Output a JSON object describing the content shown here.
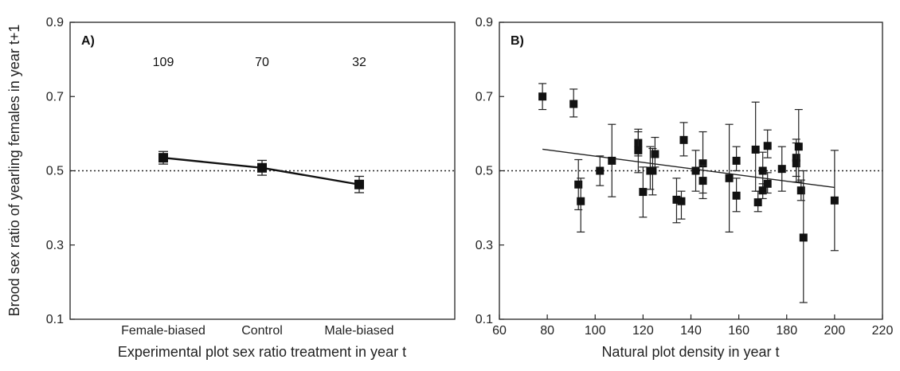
{
  "ylabel": "Brood sex ratio of yearling females in year t+1",
  "chart_data": [
    {
      "panel_label": "A)",
      "type": "line",
      "xlabel": "Experimental plot sex ratio treatment in year t",
      "ylabel": "Brood sex ratio of yearling females in year t+1",
      "ylim": [
        0.1,
        0.9
      ],
      "yticks": [
        "0.1",
        "0.3",
        "0.5",
        "0.7",
        "0.9"
      ],
      "categories": [
        "Female-biased",
        "Control",
        "Male-biased"
      ],
      "counts": [
        "109",
        "70",
        "32"
      ],
      "values": [
        0.535,
        0.508,
        0.463
      ],
      "errors": [
        0.017,
        0.02,
        0.022
      ],
      "reference_line": 0.5,
      "grid": false,
      "legend": "none"
    },
    {
      "panel_label": "B)",
      "type": "scatter",
      "xlabel": "Natural plot density in year t",
      "xlim": [
        60,
        220
      ],
      "ylim": [
        0.1,
        0.9
      ],
      "xticks": [
        "60",
        "80",
        "100",
        "120",
        "140",
        "160",
        "180",
        "200",
        "220"
      ],
      "yticks": [
        "0.1",
        "0.3",
        "0.5",
        "0.7",
        "0.9"
      ],
      "points": [
        {
          "x": 78,
          "y": 0.7,
          "lo": 0.665,
          "hi": 0.735
        },
        {
          "x": 91,
          "y": 0.68,
          "lo": 0.645,
          "hi": 0.72
        },
        {
          "x": 93,
          "y": 0.463,
          "lo": 0.395,
          "hi": 0.53
        },
        {
          "x": 94,
          "y": 0.418,
          "lo": 0.335,
          "hi": 0.48
        },
        {
          "x": 102,
          "y": 0.5,
          "lo": 0.46,
          "hi": 0.54
        },
        {
          "x": 107,
          "y": 0.527,
          "lo": 0.43,
          "hi": 0.625
        },
        {
          "x": 118,
          "y": 0.575,
          "lo": 0.54,
          "hi": 0.612
        },
        {
          "x": 118,
          "y": 0.555,
          "lo": 0.495,
          "hi": 0.605
        },
        {
          "x": 120,
          "y": 0.443,
          "lo": 0.375,
          "hi": 0.51
        },
        {
          "x": 123,
          "y": 0.5,
          "lo": 0.45,
          "hi": 0.565
        },
        {
          "x": 124,
          "y": 0.5,
          "lo": 0.435,
          "hi": 0.56
        },
        {
          "x": 125,
          "y": 0.545,
          "lo": 0.51,
          "hi": 0.59
        },
        {
          "x": 134,
          "y": 0.422,
          "lo": 0.36,
          "hi": 0.48
        },
        {
          "x": 136,
          "y": 0.418,
          "lo": 0.37,
          "hi": 0.445
        },
        {
          "x": 137,
          "y": 0.583,
          "lo": 0.54,
          "hi": 0.63
        },
        {
          "x": 142,
          "y": 0.5,
          "lo": 0.445,
          "hi": 0.555
        },
        {
          "x": 145,
          "y": 0.52,
          "lo": 0.44,
          "hi": 0.605
        },
        {
          "x": 145,
          "y": 0.473,
          "lo": 0.425,
          "hi": 0.515
        },
        {
          "x": 156,
          "y": 0.48,
          "lo": 0.335,
          "hi": 0.625
        },
        {
          "x": 159,
          "y": 0.527,
          "lo": 0.5,
          "hi": 0.565
        },
        {
          "x": 159,
          "y": 0.433,
          "lo": 0.39,
          "hi": 0.48
        },
        {
          "x": 167,
          "y": 0.557,
          "lo": 0.445,
          "hi": 0.685
        },
        {
          "x": 168,
          "y": 0.415,
          "lo": 0.39,
          "hi": 0.445
        },
        {
          "x": 170,
          "y": 0.5,
          "lo": 0.44,
          "hi": 0.55
        },
        {
          "x": 170,
          "y": 0.447,
          "lo": 0.425,
          "hi": 0.465
        },
        {
          "x": 172,
          "y": 0.567,
          "lo": 0.535,
          "hi": 0.61
        },
        {
          "x": 172,
          "y": 0.465,
          "lo": 0.44,
          "hi": 0.495
        },
        {
          "x": 178,
          "y": 0.505,
          "lo": 0.445,
          "hi": 0.565
        },
        {
          "x": 184,
          "y": 0.535,
          "lo": 0.485,
          "hi": 0.585
        },
        {
          "x": 184,
          "y": 0.52,
          "lo": 0.47,
          "hi": 0.575
        },
        {
          "x": 185,
          "y": 0.565,
          "lo": 0.47,
          "hi": 0.665
        },
        {
          "x": 186,
          "y": 0.447,
          "lo": 0.42,
          "hi": 0.475
        },
        {
          "x": 187,
          "y": 0.32,
          "lo": 0.145,
          "hi": 0.5
        },
        {
          "x": 200,
          "y": 0.42,
          "lo": 0.285,
          "hi": 0.555
        }
      ],
      "trend_line": {
        "x": [
          78,
          200
        ],
        "y": [
          0.558,
          0.455
        ]
      },
      "reference_line": 0.5,
      "grid": false,
      "legend": "none"
    }
  ]
}
